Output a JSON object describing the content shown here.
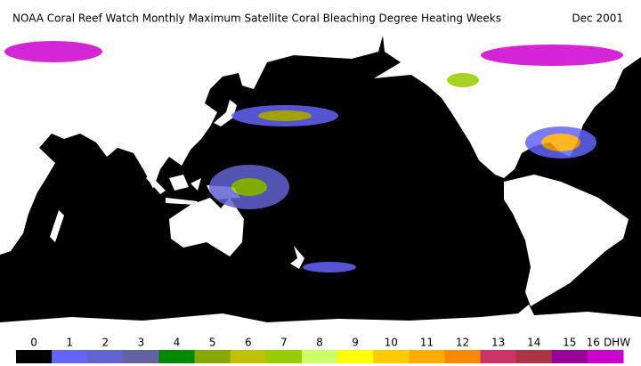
{
  "title": "NOAA Coral Reef Watch Monthly Maximum Satellite Coral Bleaching Degree Heating Weeks",
  "date": "Dec 2001",
  "legend": {
    "ticks": [
      0,
      1,
      2,
      3,
      4,
      5,
      6,
      7,
      8,
      9,
      10,
      11,
      12,
      13,
      14,
      15,
      16
    ],
    "unit": "DHW",
    "colors": [
      "#000000",
      "#6464f8",
      "#6262d0",
      "#62629e",
      "#008800",
      "#88a800",
      "#c0c000",
      "#99cc00",
      "#ccff66",
      "#ffff00",
      "#ffcc00",
      "#ffaa00",
      "#ff8800",
      "#cc3366",
      "#aa3344",
      "#990099",
      "#cc00cc"
    ]
  }
}
